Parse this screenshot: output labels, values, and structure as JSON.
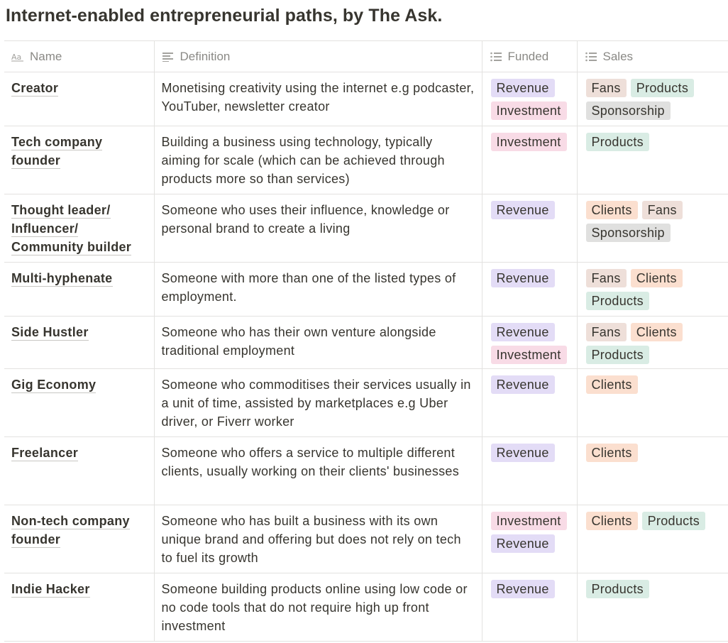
{
  "title": "Internet-enabled entrepreneurial paths, by The Ask.",
  "columns": {
    "name": "Name",
    "definition": "Definition",
    "funded": "Funded",
    "sales": "Sales"
  },
  "column_icons": {
    "name": "title-text-icon",
    "definition": "text-lines-icon",
    "funded": "list-icon",
    "sales": "list-icon"
  },
  "tag_colors": {
    "Revenue": "#e3dcf6",
    "Investment": "#f8dbe6",
    "Fans": "#eedfd9",
    "Products": "#d9ece4",
    "Sponsorship": "#e0e0df",
    "Clients": "#fbdfcf"
  },
  "rows": [
    {
      "name_lines": [
        "Creator"
      ],
      "definition": "Monetising creativity using the internet e.g podcaster, YouTuber, newsletter creator",
      "funded": [
        "Revenue",
        "Investment"
      ],
      "sales": [
        "Fans",
        "Products",
        "Sponsorship"
      ]
    },
    {
      "name_lines": [
        "Tech company",
        "founder"
      ],
      "definition": "Building a business using technology, typically aiming for scale (which can be achieved through products more so than services)",
      "funded": [
        "Investment"
      ],
      "sales": [
        "Products"
      ]
    },
    {
      "name_lines": [
        "Thought leader/",
        "Influencer/",
        "Community builder"
      ],
      "definition": "Someone who uses their influence, knowledge or personal brand to create a living",
      "funded": [
        "Revenue"
      ],
      "sales": [
        "Clients",
        "Fans",
        "Sponsorship"
      ]
    },
    {
      "name_lines": [
        "Multi-hyphenate"
      ],
      "definition": "Someone with more than one of the listed types of employment.",
      "funded": [
        "Revenue"
      ],
      "sales": [
        "Fans",
        "Clients",
        "Products"
      ]
    },
    {
      "name_lines": [
        "Side Hustler"
      ],
      "definition": "Someone who has their own venture alongside traditional employment",
      "funded": [
        "Revenue",
        "Investment"
      ],
      "sales": [
        "Fans",
        "Clients",
        "Products"
      ]
    },
    {
      "name_lines": [
        "Gig Economy"
      ],
      "definition": "Someone who commoditises their services usually in a unit of time, assisted by marketplaces e.g Uber driver, or Fiverr worker",
      "funded": [
        "Revenue"
      ],
      "sales": [
        "Clients"
      ]
    },
    {
      "name_lines": [
        "Freelancer"
      ],
      "definition": "Someone who offers a service to multiple different clients, usually working on their clients' businesses",
      "funded": [
        "Revenue"
      ],
      "sales": [
        "Clients"
      ]
    },
    {
      "name_lines": [
        "Non-tech company",
        "founder"
      ],
      "definition": "Someone who has built a business with its own unique brand and offering but does not rely on tech to fuel its growth",
      "funded": [
        "Investment",
        "Revenue"
      ],
      "sales": [
        "Clients",
        "Products"
      ]
    },
    {
      "name_lines": [
        "Indie Hacker"
      ],
      "definition": "Someone building products online using low code or no code tools that do not require high up front investment",
      "funded": [
        "Revenue"
      ],
      "sales": [
        "Products"
      ]
    }
  ]
}
